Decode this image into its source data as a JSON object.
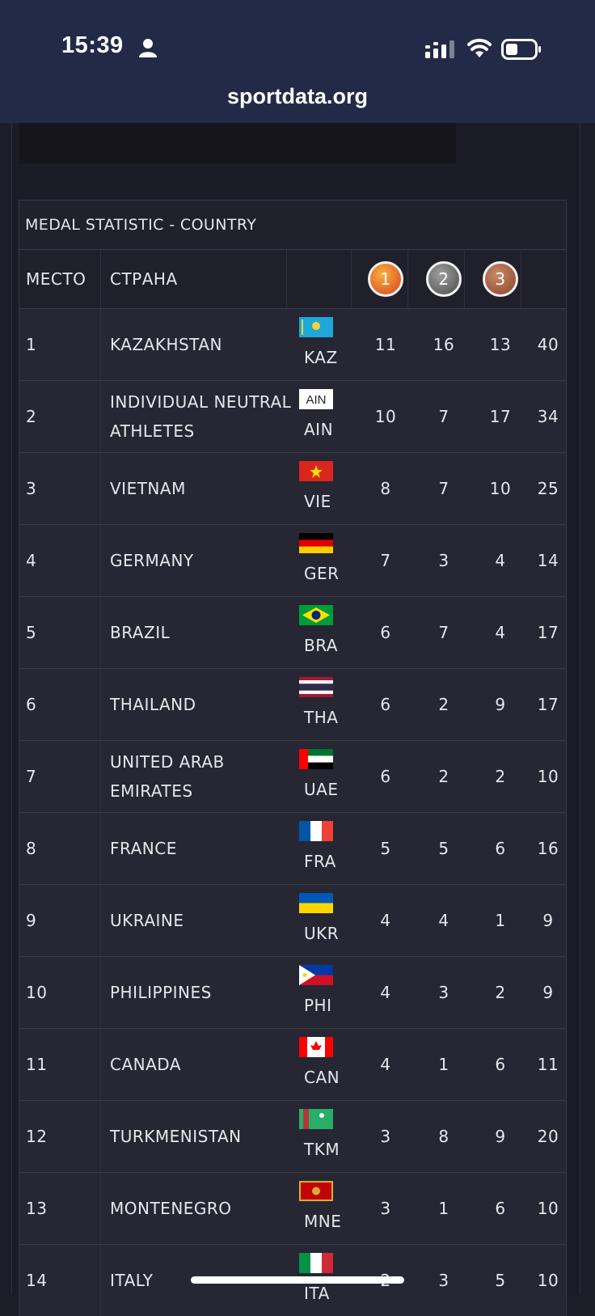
{
  "status_bar": {
    "time": "15:39"
  },
  "browser": {
    "url": "sportdata.org"
  },
  "table": {
    "caption": "MEDAL STATISTIC - COUNTRY",
    "headers": {
      "place": "МЕСТО",
      "country": "СТРАНА",
      "gold": "1",
      "silver": "2",
      "bronze": "3"
    },
    "rows": [
      {
        "place": "1",
        "country": "KAZAKHSTAN",
        "code": "KAZ",
        "flag": "kaz",
        "gold": "11",
        "silver": "16",
        "bronze": "13",
        "total": "40"
      },
      {
        "place": "2",
        "country": "INDIVIDUAL NEUTRAL ATHLETES",
        "code": "AIN",
        "flag": "ain",
        "flag_text": "AIN",
        "gold": "10",
        "silver": "7",
        "bronze": "17",
        "total": "34"
      },
      {
        "place": "3",
        "country": "VIETNAM",
        "code": "VIE",
        "flag": "vie",
        "gold": "8",
        "silver": "7",
        "bronze": "10",
        "total": "25"
      },
      {
        "place": "4",
        "country": "GERMANY",
        "code": "GER",
        "flag": "ger",
        "gold": "7",
        "silver": "3",
        "bronze": "4",
        "total": "14"
      },
      {
        "place": "5",
        "country": "BRAZIL",
        "code": "BRA",
        "flag": "bra",
        "gold": "6",
        "silver": "7",
        "bronze": "4",
        "total": "17"
      },
      {
        "place": "6",
        "country": "THAILAND",
        "code": "THA",
        "flag": "tha",
        "gold": "6",
        "silver": "2",
        "bronze": "9",
        "total": "17"
      },
      {
        "place": "7",
        "country": "UNITED ARAB EMIRATES",
        "code": "UAE",
        "flag": "uae",
        "gold": "6",
        "silver": "2",
        "bronze": "2",
        "total": "10"
      },
      {
        "place": "8",
        "country": "FRANCE",
        "code": "FRA",
        "flag": "fra",
        "gold": "5",
        "silver": "5",
        "bronze": "6",
        "total": "16"
      },
      {
        "place": "9",
        "country": "UKRAINE",
        "code": "UKR",
        "flag": "ukr",
        "gold": "4",
        "silver": "4",
        "bronze": "1",
        "total": "9"
      },
      {
        "place": "10",
        "country": "PHILIPPINES",
        "code": "PHI",
        "flag": "phi",
        "gold": "4",
        "silver": "3",
        "bronze": "2",
        "total": "9"
      },
      {
        "place": "11",
        "country": "CANADA",
        "code": "CAN",
        "flag": "can",
        "gold": "4",
        "silver": "1",
        "bronze": "6",
        "total": "11"
      },
      {
        "place": "12",
        "country": "TURKMENISTAN",
        "code": "TKM",
        "flag": "tkm",
        "gold": "3",
        "silver": "8",
        "bronze": "9",
        "total": "20"
      },
      {
        "place": "13",
        "country": "MONTENEGRO",
        "code": "MNE",
        "flag": "mne",
        "gold": "3",
        "silver": "1",
        "bronze": "6",
        "total": "10"
      },
      {
        "place": "14",
        "country": "ITALY",
        "code": "ITA",
        "flag": "ita",
        "gold": "2",
        "silver": "3",
        "bronze": "5",
        "total": "10"
      }
    ]
  }
}
